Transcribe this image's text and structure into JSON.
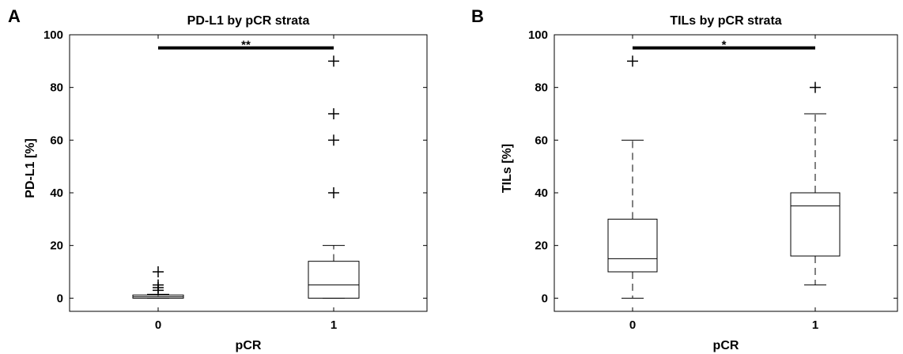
{
  "chart_data": [
    {
      "panel": "A",
      "type": "box",
      "title": "PD-L1 by pCR strata",
      "xlabel": "pCR",
      "ylabel": "PD-L1 [%]",
      "ylim": [
        -5,
        100
      ],
      "yticks": [
        0,
        20,
        40,
        60,
        80,
        100
      ],
      "categories": [
        "0",
        "1"
      ],
      "boxes": [
        {
          "category": "0",
          "min": 0,
          "q1": 0,
          "median": 0.5,
          "q3": 1.2,
          "max": 1.5,
          "outliers": [
            3,
            4,
            5,
            10
          ]
        },
        {
          "category": "1",
          "min": 0,
          "q1": 0,
          "median": 5,
          "q3": 14,
          "max": 20,
          "outliers": [
            40,
            60,
            70,
            90
          ]
        }
      ],
      "significance": {
        "label": "**",
        "y": 95
      }
    },
    {
      "panel": "B",
      "type": "box",
      "title": "TILs by pCR strata",
      "xlabel": "pCR",
      "ylabel": "TILs [%]",
      "ylim": [
        -5,
        100
      ],
      "yticks": [
        0,
        20,
        40,
        60,
        80,
        100
      ],
      "categories": [
        "0",
        "1"
      ],
      "boxes": [
        {
          "category": "0",
          "min": 0,
          "q1": 10,
          "median": 15,
          "q3": 30,
          "max": 60,
          "outliers": [
            90
          ]
        },
        {
          "category": "1",
          "min": 5,
          "q1": 16,
          "median": 35,
          "q3": 40,
          "max": 70,
          "outliers": [
            80
          ]
        }
      ],
      "significance": {
        "label": "*",
        "y": 95
      }
    }
  ]
}
